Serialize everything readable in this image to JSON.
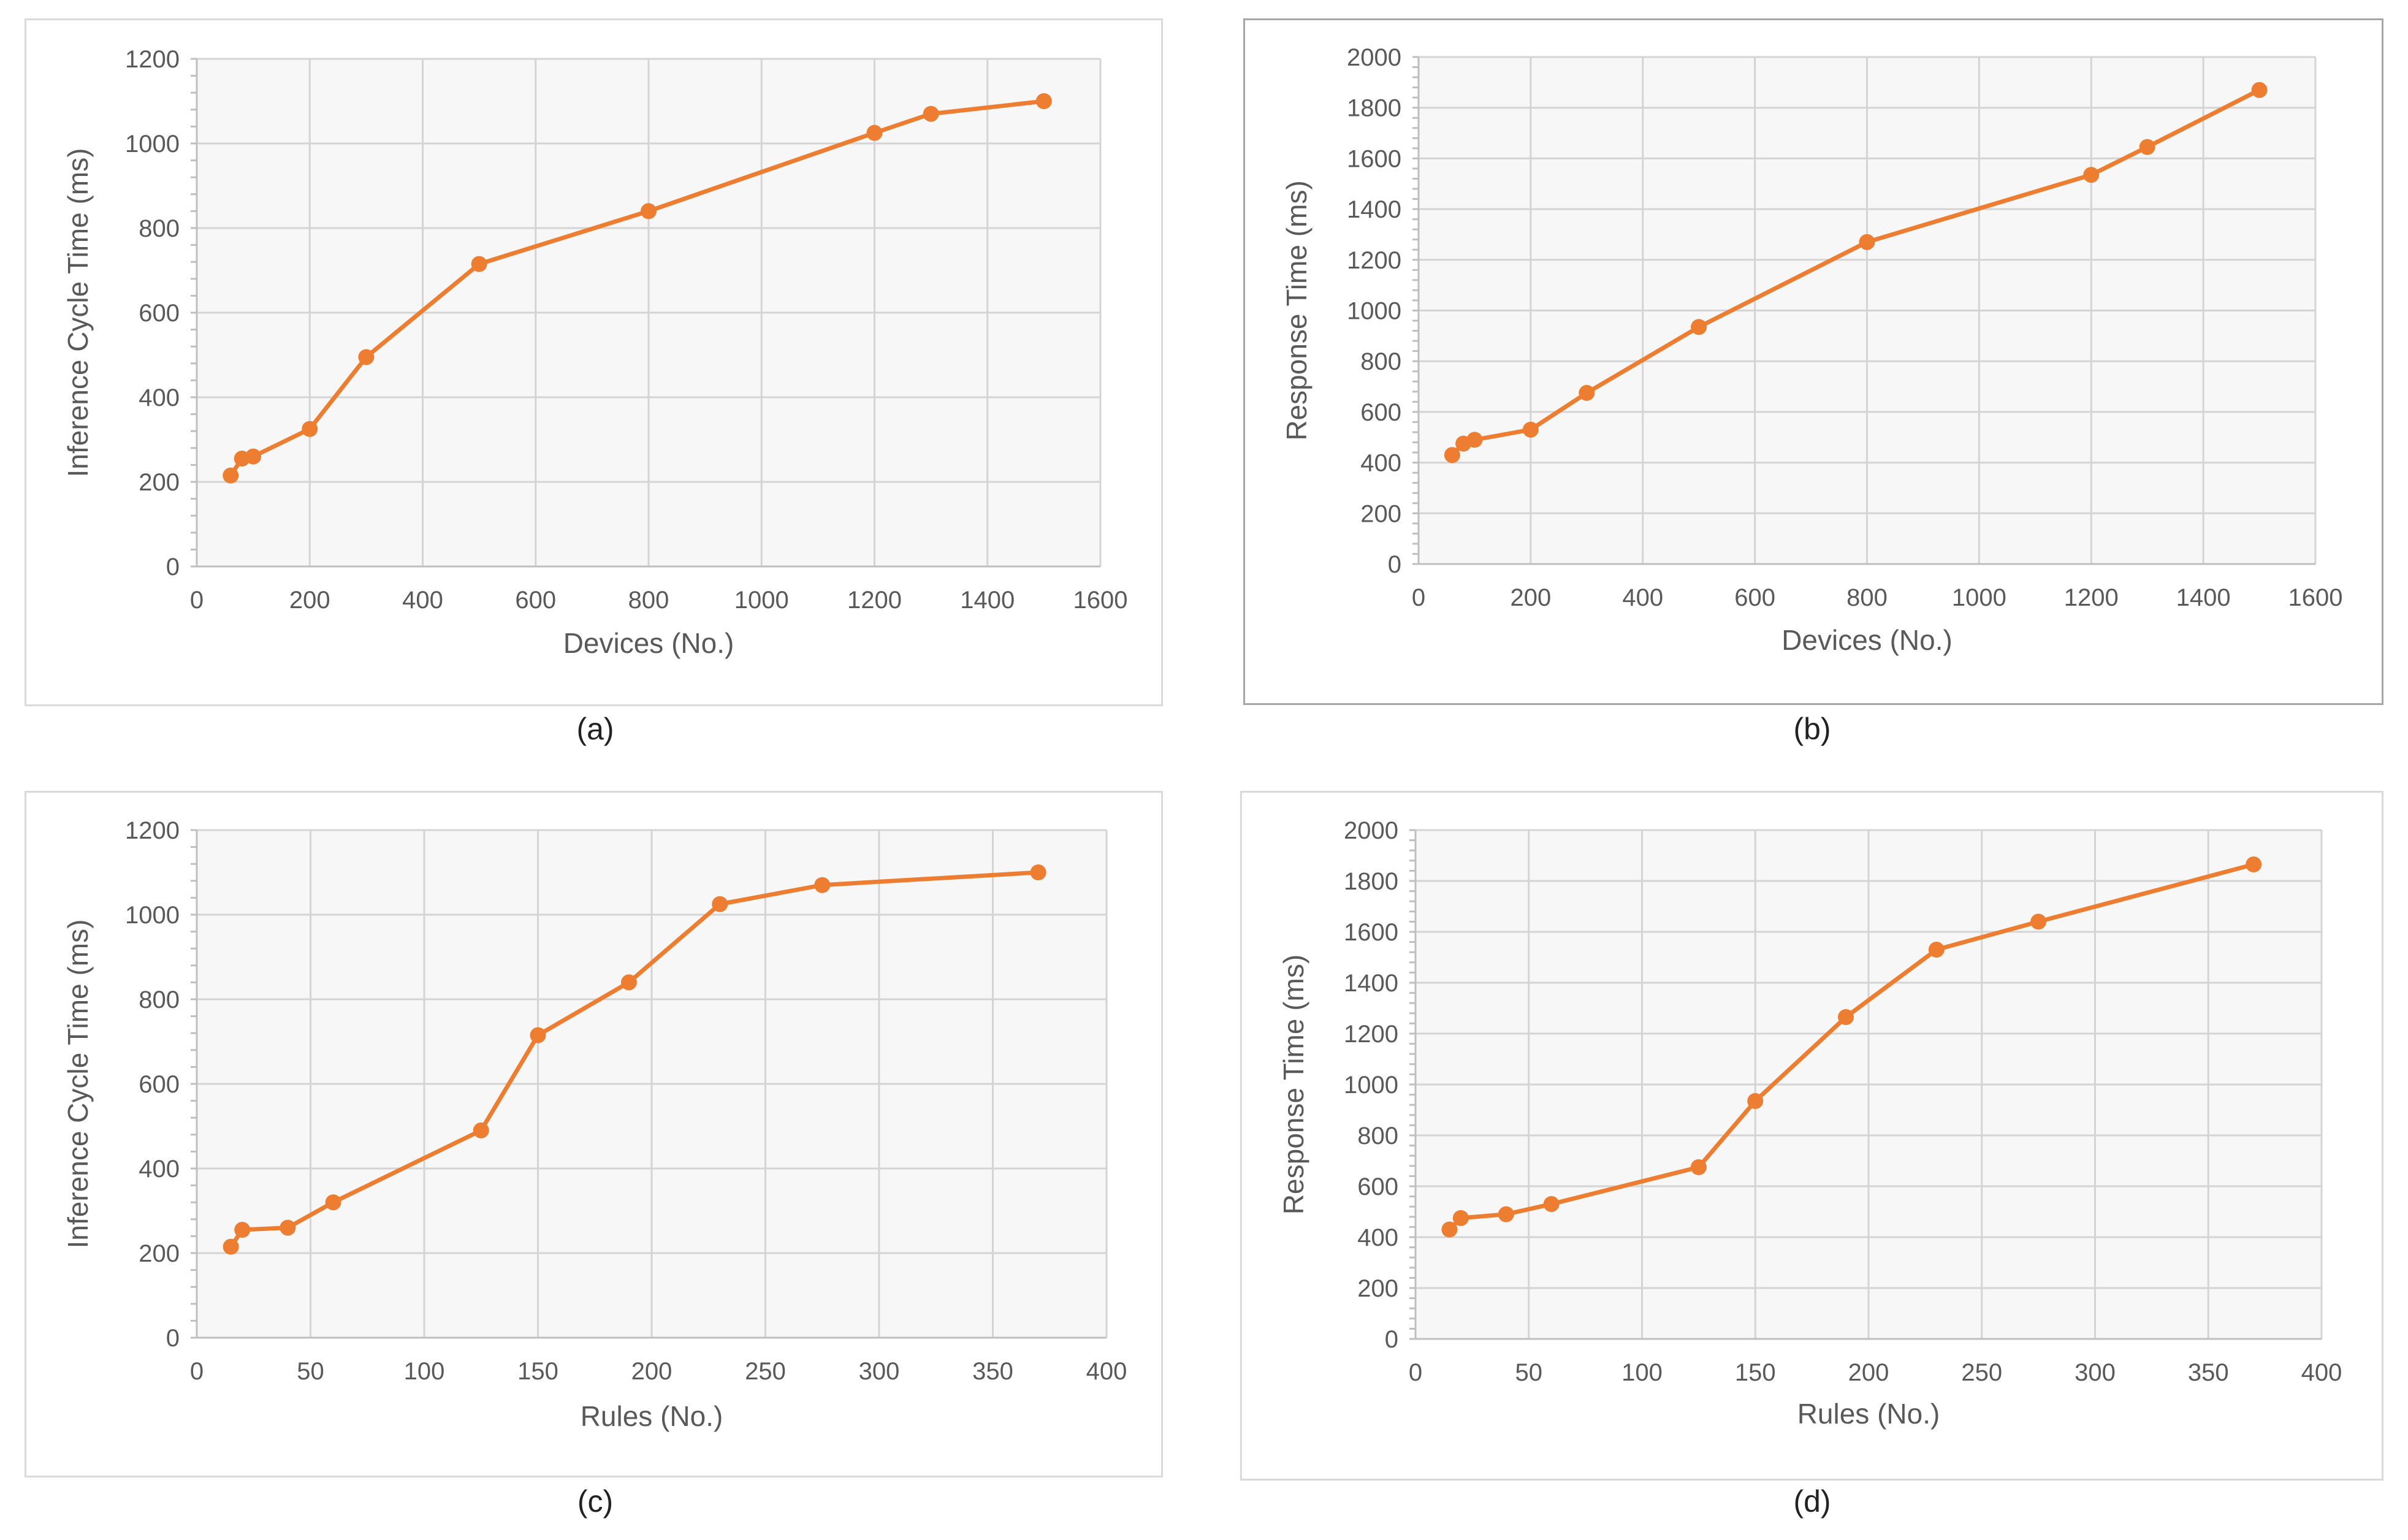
{
  "colors": {
    "series": "#ED7D31",
    "marker": "#ED7D31"
  },
  "panels": [
    {
      "caption": "(a)"
    },
    {
      "caption": "(b)"
    },
    {
      "caption": "(c)"
    },
    {
      "caption": "(d)"
    }
  ],
  "chart_data": [
    {
      "type": "line",
      "title": "",
      "xlabel": "Devices (No.)",
      "ylabel": "Inference Cycle Time (ms)",
      "xlim": [
        0,
        1600
      ],
      "ylim": [
        0,
        1200
      ],
      "xticks": [
        0,
        200,
        400,
        600,
        800,
        1000,
        1200,
        1400,
        1600
      ],
      "yticks": [
        0,
        200,
        400,
        600,
        800,
        1000,
        1200
      ],
      "x": [
        60,
        80,
        100,
        200,
        300,
        500,
        800,
        1200,
        1300,
        1500
      ],
      "series": [
        {
          "name": "Inference Cycle Time",
          "values": [
            215,
            255,
            260,
            325,
            495,
            715,
            840,
            1025,
            1070,
            1100
          ]
        }
      ],
      "grid": true,
      "legend": "none"
    },
    {
      "type": "line",
      "title": "",
      "xlabel": "Devices (No.)",
      "ylabel": "Response Time (ms)",
      "xlim": [
        0,
        1600
      ],
      "ylim": [
        0,
        2000
      ],
      "xticks": [
        0,
        200,
        400,
        600,
        800,
        1000,
        1200,
        1400,
        1600
      ],
      "yticks": [
        0,
        200,
        400,
        600,
        800,
        1000,
        1200,
        1400,
        1600,
        1800,
        2000
      ],
      "x": [
        60,
        80,
        100,
        200,
        300,
        500,
        800,
        1200,
        1300,
        1500
      ],
      "series": [
        {
          "name": "Response Time",
          "values": [
            430,
            475,
            490,
            530,
            675,
            935,
            1270,
            1535,
            1645,
            1870
          ]
        }
      ],
      "grid": true,
      "legend": "none"
    },
    {
      "type": "line",
      "title": "",
      "xlabel": "Rules (No.)",
      "ylabel": "Inference Cycle Time (ms)",
      "xlim": [
        0,
        400
      ],
      "ylim": [
        0,
        1200
      ],
      "xticks": [
        0,
        50,
        100,
        150,
        200,
        250,
        300,
        350,
        400
      ],
      "yticks": [
        0,
        200,
        400,
        600,
        800,
        1000,
        1200
      ],
      "x": [
        15,
        20,
        40,
        60,
        125,
        150,
        190,
        230,
        275,
        370
      ],
      "series": [
        {
          "name": "Inference Cycle Time",
          "values": [
            215,
            255,
            260,
            320,
            490,
            715,
            840,
            1025,
            1070,
            1100
          ]
        }
      ],
      "grid": true,
      "legend": "none"
    },
    {
      "type": "line",
      "title": "",
      "xlabel": "Rules (No.)",
      "ylabel": "Response Time (ms)",
      "xlim": [
        0,
        400
      ],
      "ylim": [
        0,
        2000
      ],
      "xticks": [
        0,
        50,
        100,
        150,
        200,
        250,
        300,
        350,
        400
      ],
      "yticks": [
        0,
        200,
        400,
        600,
        800,
        1000,
        1200,
        1400,
        1600,
        1800,
        2000
      ],
      "x": [
        15,
        20,
        40,
        60,
        125,
        150,
        190,
        230,
        275,
        370
      ],
      "series": [
        {
          "name": "Response Time",
          "values": [
            430,
            475,
            490,
            530,
            675,
            935,
            1265,
            1530,
            1640,
            1865
          ]
        }
      ],
      "grid": true,
      "legend": "none"
    }
  ]
}
